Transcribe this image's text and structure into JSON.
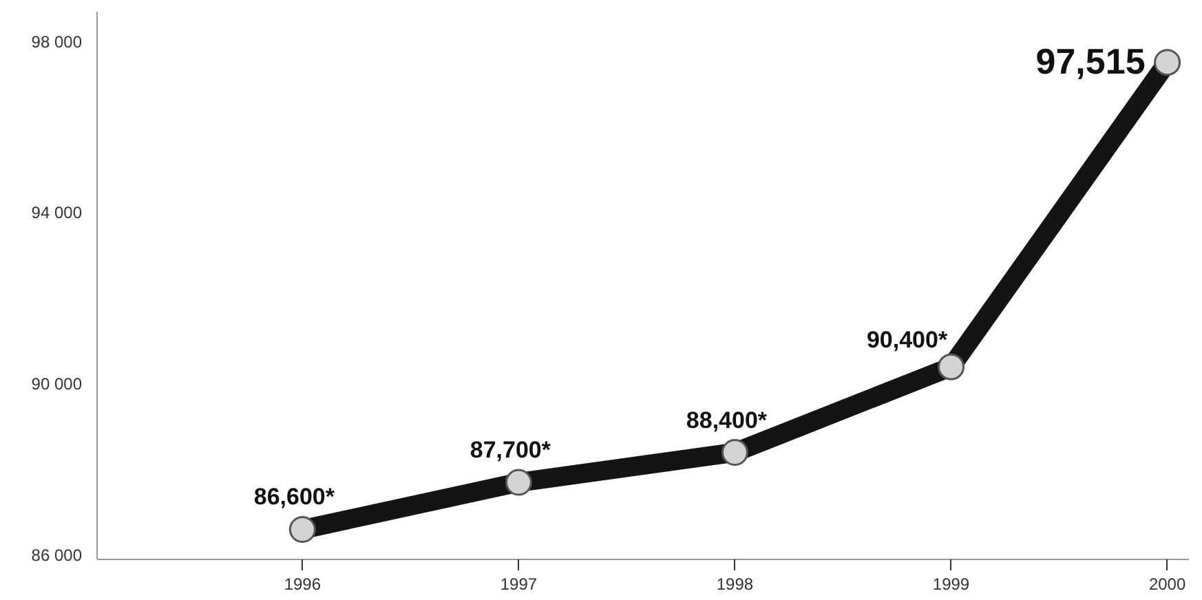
{
  "chart_data": {
    "type": "line",
    "x": [
      1996,
      1997,
      1998,
      1999,
      2000
    ],
    "values": [
      86600,
      87700,
      88400,
      90400,
      97515
    ],
    "value_labels": [
      "86,600*",
      "87,700*",
      "88,400*",
      "90,400*",
      "97,515"
    ],
    "color": "#141414",
    "marker": "circle",
    "line_style": "solid",
    "xlim": [
      1995.05,
      2000.1
    ],
    "xticks": [
      1996,
      1997,
      1998,
      1999,
      2000
    ],
    "ylim": [
      85900,
      98700
    ],
    "yticks": [
      {
        "value": 86000,
        "label": "86 000"
      },
      {
        "value": 90000,
        "label": "90 000"
      },
      {
        "value": 94000,
        "label": "94 000"
      },
      {
        "value": 98000,
        "label": "98 000"
      }
    ],
    "grid": false
  }
}
